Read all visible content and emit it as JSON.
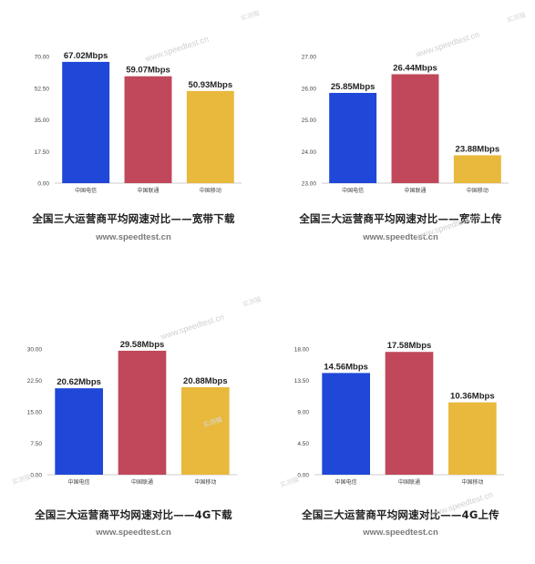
{
  "source": "www.speedtest.cn",
  "watermark": "www.speedtest.cn",
  "watermark_small": "实测猫",
  "colors": {
    "电信": "#1f47d8",
    "联通": "#c0485a",
    "移动": "#e8b93c"
  },
  "chart_data": [
    {
      "type": "bar",
      "title": "全国三大运营商平均网速对比——宽带下载",
      "categories": [
        "中国电信",
        "中国联通",
        "中国移动"
      ],
      "values": [
        67.02,
        59.07,
        50.93
      ],
      "value_labels": [
        "67.02Mbps",
        "59.07Mbps",
        "50.93Mbps"
      ],
      "yticks": [
        "0.00",
        "17.50",
        "35.00",
        "52.50",
        "70.00"
      ],
      "ylim": [
        0,
        70
      ],
      "grid": false
    },
    {
      "type": "bar",
      "title": "全国三大运营商平均网速对比——宽带上传",
      "categories": [
        "中国电信",
        "中国联通",
        "中国移动"
      ],
      "values": [
        25.85,
        26.44,
        23.88
      ],
      "value_labels": [
        "25.85Mbps",
        "26.44Mbps",
        "23.88Mbps"
      ],
      "yticks": [
        "23.00",
        "24.00",
        "25.00",
        "26.00",
        "27.00"
      ],
      "ylim": [
        23,
        27
      ],
      "grid": false
    },
    {
      "type": "bar",
      "title": "全国三大运营商平均网速对比——4G下载",
      "categories": [
        "中国电信",
        "中国联通",
        "中国移动"
      ],
      "values": [
        20.62,
        29.58,
        20.88
      ],
      "value_labels": [
        "20.62Mbps",
        "29.58Mbps",
        "20.88Mbps"
      ],
      "yticks": [
        "0.00",
        "7.50",
        "15.00",
        "22.50",
        "30.00"
      ],
      "ylim": [
        0,
        30
      ],
      "grid": false
    },
    {
      "type": "bar",
      "title": "全国三大运营商平均网速对比——4G上传",
      "categories": [
        "中国电信",
        "中国联通",
        "中国移动"
      ],
      "values": [
        14.56,
        17.58,
        10.36
      ],
      "value_labels": [
        "14.56Mbps",
        "17.58Mbps",
        "10.36Mbps"
      ],
      "yticks": [
        "0.00",
        "4.50",
        "9.00",
        "13.50",
        "18.00"
      ],
      "ylim": [
        0,
        18
      ],
      "grid": false
    }
  ]
}
